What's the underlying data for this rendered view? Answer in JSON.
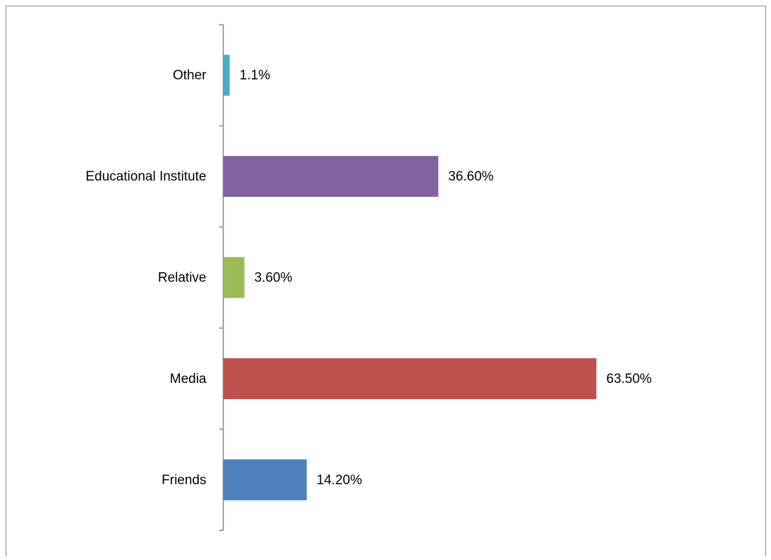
{
  "chart_data": {
    "type": "bar",
    "orientation": "horizontal",
    "categories": [
      "Friends",
      "Media",
      "Relative",
      "Educational Institute",
      "Other"
    ],
    "values": [
      14.2,
      63.5,
      3.6,
      36.6,
      1.1
    ],
    "value_labels": [
      "14.20%",
      "63.50%",
      "3.60%",
      "36.60%",
      "1.1%"
    ],
    "colors": [
      "#4f81bd",
      "#c0504d",
      "#9bbb59",
      "#8064a2",
      "#4bacc6"
    ]
  }
}
